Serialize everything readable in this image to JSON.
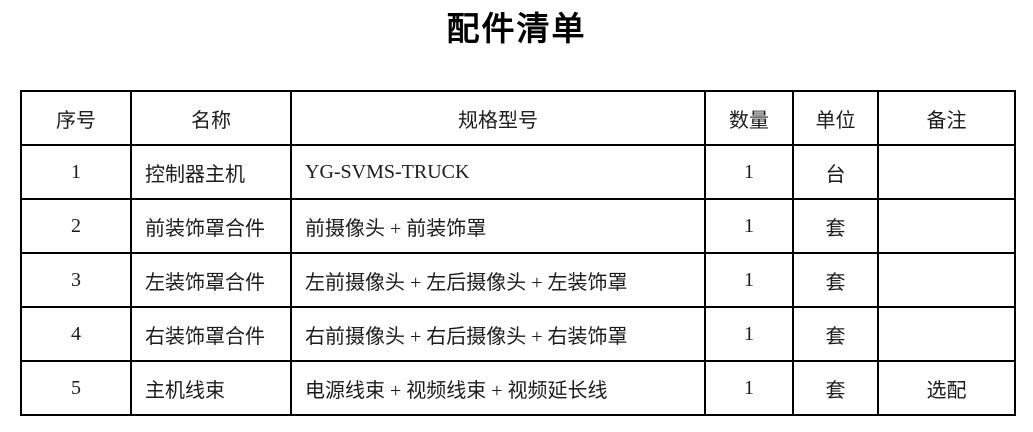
{
  "page": {
    "title": "配件清单"
  },
  "table": {
    "headers": [
      "序号",
      "名称",
      "规格型号",
      "数量",
      "单位",
      "备注"
    ],
    "rows": [
      {
        "no": "1",
        "name": "控制器主机",
        "spec": "YG-SVMS-TRUCK",
        "qty": "1",
        "unit": "台",
        "note": ""
      },
      {
        "no": "2",
        "name": "前装饰罩合件",
        "spec": "前摄像头 + 前装饰罩",
        "qty": "1",
        "unit": "套",
        "note": ""
      },
      {
        "no": "3",
        "name": "左装饰罩合件",
        "spec": "左前摄像头 + 左后摄像头 + 左装饰罩",
        "qty": "1",
        "unit": "套",
        "note": ""
      },
      {
        "no": "4",
        "name": "右装饰罩合件",
        "spec": "右前摄像头 + 右后摄像头 + 右装饰罩",
        "qty": "1",
        "unit": "套",
        "note": ""
      },
      {
        "no": "5",
        "name": "主机线束",
        "spec": "电源线束 + 视频线束 + 视频延长线",
        "qty": "1",
        "unit": "套",
        "note": "选配"
      }
    ]
  }
}
